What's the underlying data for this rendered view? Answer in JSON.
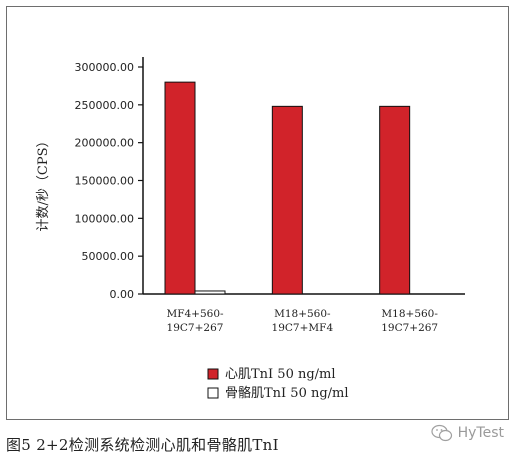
{
  "caption": "图5 2+2检测系统检测心肌和骨骼肌TnI",
  "watermark": "HyTest",
  "colors": {
    "cardiac": "#d1232a",
    "skeletal": "#ffffff",
    "axis": "#111111"
  },
  "chart_data": {
    "type": "bar",
    "ylabel": "计数/秒（CPS）",
    "ylim": [
      0,
      300000
    ],
    "yticks": [
      "0.00",
      "50000.00",
      "100000.00",
      "150000.00",
      "200000.00",
      "250000.00",
      "300000.00"
    ],
    "ytick_values": [
      0,
      50000,
      100000,
      150000,
      200000,
      250000,
      300000
    ],
    "grid": false,
    "legend": "bottom-center",
    "categories": [
      [
        "MF4+560-",
        "19C7+267"
      ],
      [
        "M18+560-",
        "19C7+MF4"
      ],
      [
        "M18+560-",
        "19C7+267"
      ]
    ],
    "series": [
      {
        "name": "心肌TnI 50 ng/ml",
        "color": "#d1232a",
        "values": [
          280000,
          248000,
          248000
        ]
      },
      {
        "name": "骨骼肌TnI 50 ng/ml",
        "color": "#ffffff",
        "values": [
          4000,
          0,
          0
        ]
      }
    ]
  }
}
